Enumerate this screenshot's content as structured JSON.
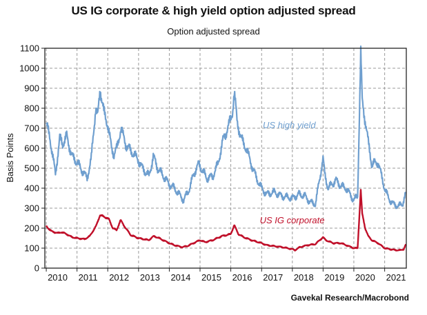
{
  "chart_data": {
    "type": "line",
    "title": "US IG corporate & high yield option adjusted spread",
    "subtitle": "Option adjusted spread",
    "ylabel": "Basis Points",
    "xlabel": "",
    "ylim": [
      0,
      1100
    ],
    "xlim": [
      "2009-12-15",
      "2021-09-15"
    ],
    "grid": true,
    "y_ticks": [
      0,
      100,
      200,
      300,
      400,
      500,
      600,
      700,
      800,
      900,
      1000,
      1100
    ],
    "x_tick_labels": [
      "2010",
      "2011",
      "2012",
      "2013",
      "2014",
      "2015",
      "2016",
      "2017",
      "2018",
      "2019",
      "2020",
      "2021"
    ],
    "series": [
      {
        "name": "US high yield",
        "color": "#6f9fcf",
        "points": [
          [
            "2010-01-01",
            720
          ],
          [
            "2010-02-10",
            660
          ],
          [
            "2010-04-20",
            470
          ],
          [
            "2010-06-10",
            650
          ],
          [
            "2010-07-15",
            620
          ],
          [
            "2010-09-01",
            660
          ],
          [
            "2010-11-01",
            560
          ],
          [
            "2011-01-01",
            530
          ],
          [
            "2011-03-15",
            480
          ],
          [
            "2011-05-01",
            450
          ],
          [
            "2011-06-20",
            550
          ],
          [
            "2011-08-10",
            800
          ],
          [
            "2011-09-05",
            760
          ],
          [
            "2011-10-03",
            900
          ],
          [
            "2011-11-15",
            780
          ],
          [
            "2011-12-31",
            720
          ],
          [
            "2012-02-15",
            600
          ],
          [
            "2012-03-15",
            570
          ],
          [
            "2012-04-20",
            600
          ],
          [
            "2012-06-05",
            700
          ],
          [
            "2012-08-01",
            620
          ],
          [
            "2012-10-15",
            580
          ],
          [
            "2012-12-31",
            540
          ],
          [
            "2013-02-15",
            500
          ],
          [
            "2013-05-05",
            460
          ],
          [
            "2013-06-25",
            560
          ],
          [
            "2013-08-15",
            500
          ],
          [
            "2013-12-31",
            420
          ],
          [
            "2014-03-01",
            400
          ],
          [
            "2014-06-20",
            340
          ],
          [
            "2014-09-01",
            400
          ],
          [
            "2014-10-15",
            470
          ],
          [
            "2014-12-16",
            520
          ],
          [
            "2015-01-15",
            500
          ],
          [
            "2015-03-20",
            450
          ],
          [
            "2015-06-01",
            460
          ],
          [
            "2015-08-01",
            520
          ],
          [
            "2015-09-30",
            640
          ],
          [
            "2015-12-14",
            720
          ],
          [
            "2016-01-20",
            780
          ],
          [
            "2016-02-11",
            880
          ],
          [
            "2016-03-15",
            740
          ],
          [
            "2016-05-01",
            650
          ],
          [
            "2016-07-01",
            600
          ],
          [
            "2016-09-01",
            520
          ],
          [
            "2016-11-01",
            450
          ],
          [
            "2016-12-31",
            400
          ],
          [
            "2017-03-01",
            370
          ],
          [
            "2017-06-01",
            380
          ],
          [
            "2017-09-01",
            360
          ],
          [
            "2017-12-31",
            350
          ],
          [
            "2018-02-10",
            360
          ],
          [
            "2018-03-15",
            370
          ],
          [
            "2018-06-01",
            360
          ],
          [
            "2018-08-01",
            330
          ],
          [
            "2018-10-01",
            320
          ],
          [
            "2018-11-15",
            430
          ],
          [
            "2018-12-31",
            550
          ],
          [
            "2019-01-20",
            470
          ],
          [
            "2019-03-01",
            400
          ],
          [
            "2019-06-03",
            440
          ],
          [
            "2019-08-01",
            410
          ],
          [
            "2019-10-01",
            400
          ],
          [
            "2019-12-31",
            340
          ],
          [
            "2020-02-15",
            360
          ],
          [
            "2020-03-23",
            1080
          ],
          [
            "2020-04-10",
            830
          ],
          [
            "2020-05-15",
            740
          ],
          [
            "2020-06-20",
            630
          ],
          [
            "2020-08-01",
            520
          ],
          [
            "2020-10-15",
            530
          ],
          [
            "2020-12-31",
            400
          ],
          [
            "2021-02-15",
            350
          ],
          [
            "2021-04-15",
            320
          ],
          [
            "2021-06-15",
            310
          ],
          [
            "2021-08-01",
            320
          ],
          [
            "2021-09-10",
            380
          ]
        ]
      },
      {
        "name": "US IG corporate",
        "color": "#c0102a",
        "points": [
          [
            "2010-01-01",
            210
          ],
          [
            "2010-03-01",
            185
          ],
          [
            "2010-05-15",
            175
          ],
          [
            "2010-07-01",
            180
          ],
          [
            "2010-09-01",
            170
          ],
          [
            "2010-11-01",
            155
          ],
          [
            "2011-01-01",
            150
          ],
          [
            "2011-04-01",
            145
          ],
          [
            "2011-06-01",
            160
          ],
          [
            "2011-08-15",
            210
          ],
          [
            "2011-10-01",
            265
          ],
          [
            "2011-12-01",
            255
          ],
          [
            "2012-01-15",
            245
          ],
          [
            "2012-03-01",
            200
          ],
          [
            "2012-04-15",
            190
          ],
          [
            "2012-06-01",
            240
          ],
          [
            "2012-08-01",
            200
          ],
          [
            "2012-10-01",
            165
          ],
          [
            "2012-12-31",
            150
          ],
          [
            "2013-03-01",
            145
          ],
          [
            "2013-05-01",
            140
          ],
          [
            "2013-07-01",
            160
          ],
          [
            "2013-09-01",
            150
          ],
          [
            "2013-12-31",
            125
          ],
          [
            "2014-03-01",
            115
          ],
          [
            "2014-06-01",
            105
          ],
          [
            "2014-08-01",
            110
          ],
          [
            "2014-10-15",
            125
          ],
          [
            "2014-12-31",
            140
          ],
          [
            "2015-03-01",
            130
          ],
          [
            "2015-06-01",
            140
          ],
          [
            "2015-09-15",
            160
          ],
          [
            "2015-12-31",
            170
          ],
          [
            "2016-02-11",
            215
          ],
          [
            "2016-04-01",
            170
          ],
          [
            "2016-06-01",
            155
          ],
          [
            "2016-09-01",
            140
          ],
          [
            "2016-12-31",
            125
          ],
          [
            "2017-03-01",
            115
          ],
          [
            "2017-06-01",
            110
          ],
          [
            "2017-09-01",
            105
          ],
          [
            "2017-12-31",
            95
          ],
          [
            "2018-02-01",
            90
          ],
          [
            "2018-04-01",
            105
          ],
          [
            "2018-07-01",
            115
          ],
          [
            "2018-10-01",
            120
          ],
          [
            "2018-12-31",
            155
          ],
          [
            "2019-02-01",
            140
          ],
          [
            "2019-05-01",
            125
          ],
          [
            "2019-08-01",
            125
          ],
          [
            "2019-11-01",
            110
          ],
          [
            "2019-12-31",
            100
          ],
          [
            "2020-02-15",
            100
          ],
          [
            "2020-03-23",
            390
          ],
          [
            "2020-04-10",
            270
          ],
          [
            "2020-05-15",
            200
          ],
          [
            "2020-06-20",
            160
          ],
          [
            "2020-08-01",
            140
          ],
          [
            "2020-10-15",
            125
          ],
          [
            "2020-12-31",
            100
          ],
          [
            "2021-03-01",
            95
          ],
          [
            "2021-05-15",
            90
          ],
          [
            "2021-07-15",
            90
          ],
          [
            "2021-08-15",
            95
          ],
          [
            "2021-09-10",
            120
          ]
        ]
      }
    ],
    "source": "Gavekal Research/Macrobond"
  }
}
